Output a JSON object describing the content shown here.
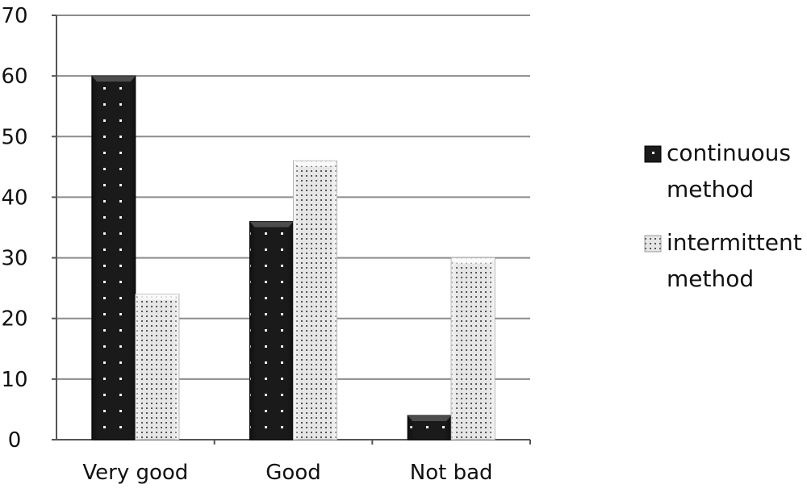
{
  "chart_data": {
    "type": "bar",
    "title": "",
    "xlabel": "",
    "ylabel": "",
    "categories": [
      "Very good",
      "Good",
      "Not bad"
    ],
    "series": [
      {
        "name": "continuous method",
        "values": [
          60,
          36,
          4
        ]
      },
      {
        "name": "intermittent method",
        "values": [
          24,
          46,
          30
        ]
      }
    ],
    "ylim": [
      0,
      70
    ],
    "yticks": [
      0,
      10,
      20,
      30,
      40,
      50,
      60,
      70
    ],
    "grid": true,
    "legend": "right",
    "legend_lines": [
      [
        "continuous",
        "method"
      ],
      [
        "intermittent",
        "method"
      ]
    ],
    "colors": {
      "continuous": "#1a1a1a",
      "intermittent": "#e6e6e6",
      "grid": "#8c8c8c",
      "axis": "#555555"
    }
  }
}
